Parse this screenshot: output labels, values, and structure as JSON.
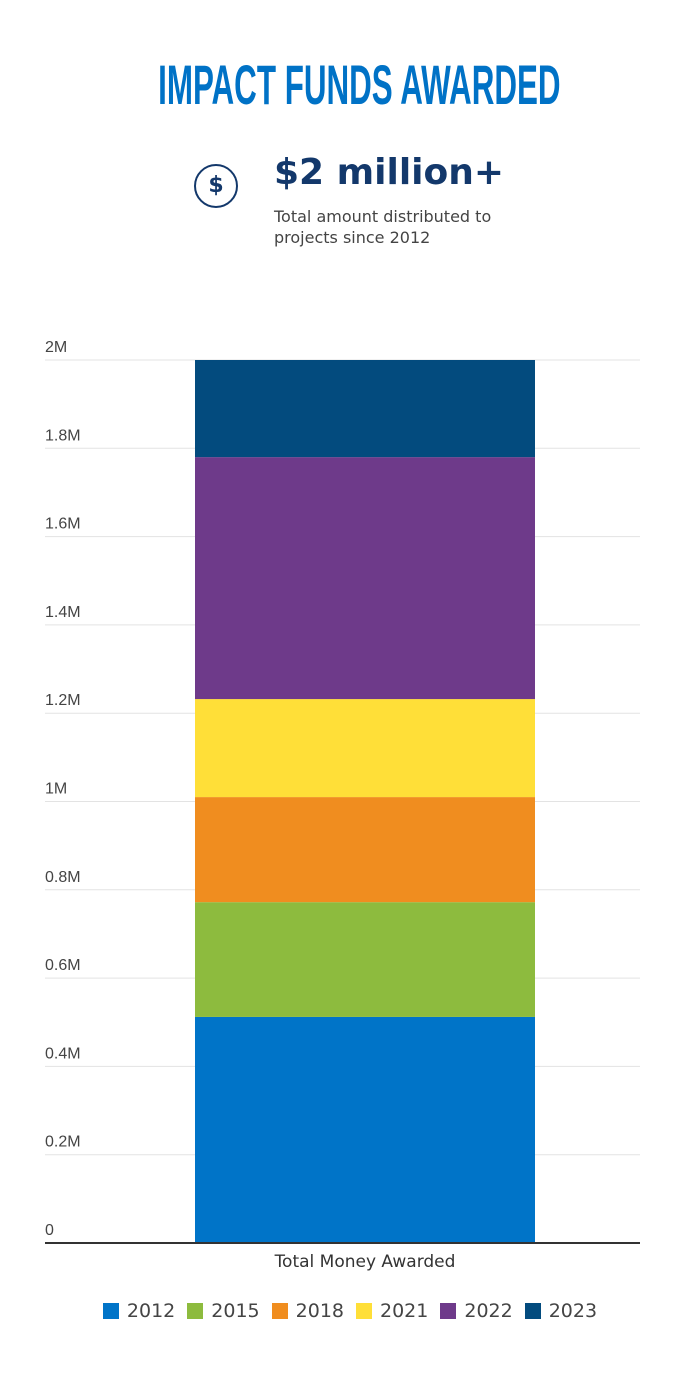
{
  "header": {
    "title": "IMPACT FUNDS AWARDED",
    "icon": "dollar-circle-icon",
    "icon_glyph": "$",
    "stat_value": "$2 million+",
    "stat_caption": "Total amount distributed to projects since 2012"
  },
  "chart_data": {
    "type": "bar",
    "stacked": true,
    "title": "IMPACT FUNDS AWARDED",
    "categories": [
      "Total Money Awarded"
    ],
    "xlabel": "",
    "ylabel": "",
    "ylim": [
      0,
      2000000
    ],
    "yticks": [
      0,
      200000,
      400000,
      600000,
      800000,
      1000000,
      1200000,
      1400000,
      1600000,
      1800000,
      2000000
    ],
    "ytick_labels": [
      "0",
      "0.2M",
      "0.4M",
      "0.6M",
      "0.8M",
      "1M",
      "1.2M",
      "1.4M",
      "1.6M",
      "1.8M",
      "2M"
    ],
    "grid": true,
    "legend_position": "bottom",
    "series": [
      {
        "name": "2012",
        "values": [
          512000
        ],
        "color": "#0074c8"
      },
      {
        "name": "2015",
        "values": [
          260000
        ],
        "color": "#8dbb3e"
      },
      {
        "name": "2018",
        "values": [
          238000
        ],
        "color": "#f08d1f"
      },
      {
        "name": "2021",
        "values": [
          222000
        ],
        "color": "#ffdf38"
      },
      {
        "name": "2022",
        "values": [
          548000
        ],
        "color": "#6e3a8a"
      },
      {
        "name": "2023",
        "values": [
          220000
        ],
        "color": "#034b7e"
      }
    ]
  }
}
